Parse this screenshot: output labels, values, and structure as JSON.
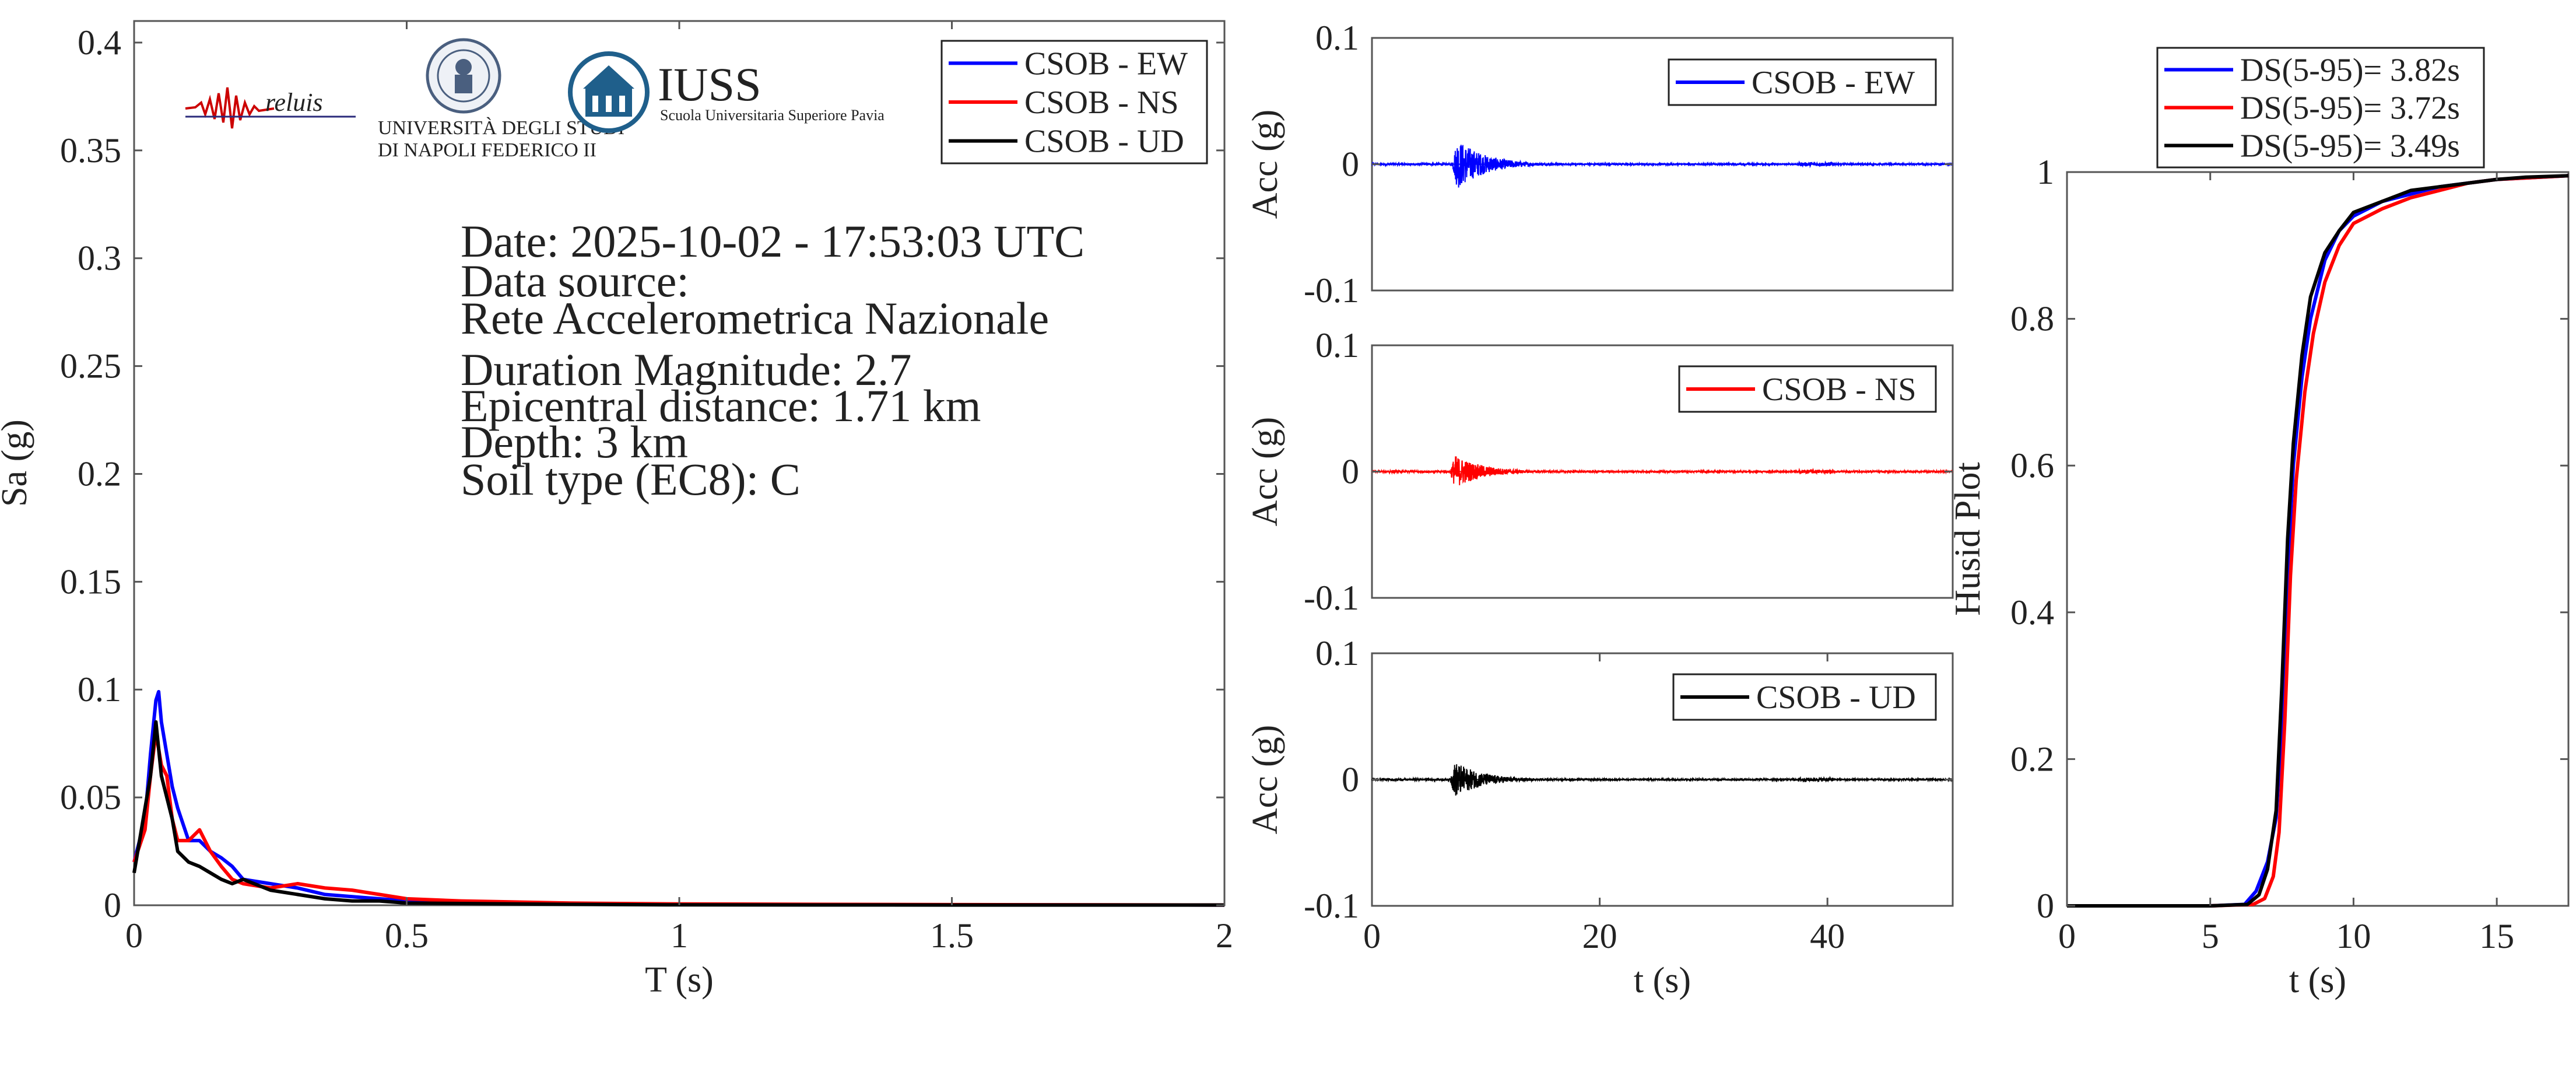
{
  "colors": {
    "ew": "#0000ff",
    "ns": "#ff0000",
    "ud": "#000000",
    "axis": "#555555"
  },
  "logos": {
    "reluis": "reluis",
    "unina_line1": "UNIVERSITÀ DEGLI STUDI",
    "unina_line2": "DI NAPOLI FEDERICO II",
    "iuss": "IUSS",
    "iuss_sub": "Scuola Universitaria Superiore Pavia"
  },
  "info": {
    "date": "Date: 2025-10-02 - 17:53:03 UTC",
    "source_label": "Data source:",
    "source": "Rete Accelerometrica Nazionale",
    "magnitude": "Duration Magnitude: 2.7",
    "distance": "Epicentral distance: 1.71 km",
    "depth": "Depth: 3 km",
    "soil": "Soil type (EC8): C"
  },
  "chart_data": [
    {
      "id": "spectrum",
      "type": "line",
      "xlabel": "T (s)",
      "ylabel": "Sa (g)",
      "xlim": [
        0,
        2
      ],
      "ylim": [
        0,
        0.41
      ],
      "xticks": [
        "0",
        "0.5",
        "1",
        "1.5",
        "2"
      ],
      "xtick_values": [
        0,
        0.5,
        1,
        1.5,
        2
      ],
      "yticks": [
        "0",
        "0.05",
        "0.1",
        "0.15",
        "0.2",
        "0.25",
        "0.3",
        "0.35",
        "0.4"
      ],
      "ytick_values": [
        0,
        0.05,
        0.1,
        0.15,
        0.2,
        0.25,
        0.3,
        0.35,
        0.4
      ],
      "grid": false,
      "legend": "top-right",
      "series": [
        {
          "name": "CSOB - EW",
          "color": "#0000ff",
          "x": [
            0,
            0.02,
            0.03,
            0.04,
            0.045,
            0.05,
            0.06,
            0.07,
            0.08,
            0.1,
            0.12,
            0.14,
            0.16,
            0.18,
            0.2,
            0.25,
            0.3,
            0.35,
            0.4,
            0.45,
            0.5,
            0.6,
            0.8,
            1.0,
            1.5,
            2.0
          ],
          "y": [
            0.02,
            0.04,
            0.07,
            0.095,
            0.099,
            0.085,
            0.07,
            0.055,
            0.045,
            0.03,
            0.03,
            0.025,
            0.022,
            0.018,
            0.012,
            0.01,
            0.008,
            0.005,
            0.004,
            0.003,
            0.002,
            0.001,
            0.0005,
            0.0003,
            0.0002,
            0.0001
          ]
        },
        {
          "name": "CSOB - NS",
          "color": "#ff0000",
          "x": [
            0,
            0.02,
            0.03,
            0.04,
            0.05,
            0.06,
            0.07,
            0.08,
            0.1,
            0.12,
            0.14,
            0.16,
            0.18,
            0.2,
            0.25,
            0.3,
            0.35,
            0.4,
            0.45,
            0.5,
            0.6,
            0.8,
            1.0,
            1.5,
            2.0
          ],
          "y": [
            0.02,
            0.035,
            0.06,
            0.08,
            0.065,
            0.06,
            0.04,
            0.03,
            0.03,
            0.035,
            0.025,
            0.018,
            0.012,
            0.01,
            0.008,
            0.01,
            0.008,
            0.007,
            0.005,
            0.003,
            0.002,
            0.001,
            0.0006,
            0.0003,
            0.0001
          ]
        },
        {
          "name": "CSOB - UD",
          "color": "#000000",
          "x": [
            0,
            0.02,
            0.03,
            0.04,
            0.05,
            0.06,
            0.07,
            0.08,
            0.1,
            0.12,
            0.14,
            0.16,
            0.18,
            0.2,
            0.25,
            0.3,
            0.35,
            0.4,
            0.45,
            0.5,
            0.6,
            0.8,
            1.0,
            1.5,
            2.0
          ],
          "y": [
            0.015,
            0.045,
            0.06,
            0.085,
            0.06,
            0.05,
            0.04,
            0.025,
            0.02,
            0.018,
            0.015,
            0.012,
            0.01,
            0.012,
            0.007,
            0.005,
            0.003,
            0.002,
            0.002,
            0.001,
            0.0008,
            0.0004,
            0.0002,
            0.0001,
            0.0001
          ]
        }
      ]
    },
    {
      "id": "acc_ew",
      "type": "line",
      "xlabel": "",
      "ylabel": "Acc (g)",
      "xlim": [
        0,
        51
      ],
      "ylim": [
        -0.1,
        0.1
      ],
      "xticks": [],
      "xtick_values": [],
      "yticks": [
        "-0.1",
        "0",
        "0.1"
      ],
      "ytick_values": [
        -0.1,
        0,
        0.1
      ],
      "legend": "top-right",
      "series": [
        {
          "name": "CSOB - EW",
          "color": "#0000ff",
          "signal_duration_s": 51,
          "peak_time_s": 7.5,
          "peak_abs": 0.02,
          "decay_s": 2.5,
          "pre_noise": 0.0008,
          "post_noise": 0.0006
        }
      ]
    },
    {
      "id": "acc_ns",
      "type": "line",
      "xlabel": "",
      "ylabel": "Acc (g)",
      "xlim": [
        0,
        51
      ],
      "ylim": [
        -0.1,
        0.1
      ],
      "xticks": [],
      "xtick_values": [],
      "yticks": [
        "-0.1",
        "0",
        "0.1"
      ],
      "ytick_values": [
        -0.1,
        0,
        0.1
      ],
      "legend": "top-right",
      "series": [
        {
          "name": "CSOB - NS",
          "color": "#ff0000",
          "signal_duration_s": 51,
          "peak_time_s": 7.3,
          "peak_abs": 0.013,
          "decay_s": 2.5,
          "pre_noise": 0.0008,
          "post_noise": 0.0006
        }
      ]
    },
    {
      "id": "acc_ud",
      "type": "line",
      "xlabel": "t (s)",
      "ylabel": "Acc (g)",
      "xlim": [
        0,
        51
      ],
      "ylim": [
        -0.1,
        0.1
      ],
      "xticks": [
        "0",
        "20",
        "40"
      ],
      "xtick_values": [
        0,
        20,
        40
      ],
      "yticks": [
        "-0.1",
        "0",
        "0.1"
      ],
      "ytick_values": [
        -0.1,
        0,
        0.1
      ],
      "legend": "top-right",
      "series": [
        {
          "name": "CSOB - UD",
          "color": "#000000",
          "signal_duration_s": 51,
          "peak_time_s": 7.3,
          "peak_abs": 0.014,
          "decay_s": 2.5,
          "pre_noise": 0.0008,
          "post_noise": 0.0006
        }
      ]
    },
    {
      "id": "husid",
      "type": "line",
      "xlabel": "t (s)",
      "ylabel": "Husid Plot",
      "xlim": [
        0,
        17.5
      ],
      "ylim": [
        0,
        1
      ],
      "xticks": [
        "0",
        "5",
        "10",
        "15"
      ],
      "xtick_values": [
        0,
        5,
        10,
        15
      ],
      "yticks": [
        "0",
        "0.2",
        "0.4",
        "0.6",
        "0.8",
        "1"
      ],
      "ytick_values": [
        0,
        0.2,
        0.4,
        0.6,
        0.8,
        1
      ],
      "legend": "top-left-outside",
      "series": [
        {
          "name": "DS(5-95)= 3.82s",
          "color": "#0000ff",
          "x": [
            0,
            5,
            6.2,
            6.6,
            7.0,
            7.3,
            7.5,
            7.7,
            7.9,
            8.2,
            8.5,
            9.0,
            9.5,
            10.0,
            11.0,
            12.0,
            13.0,
            14.0,
            15.0,
            16.0,
            17.5
          ],
          "y": [
            0,
            0,
            0.002,
            0.02,
            0.06,
            0.12,
            0.25,
            0.45,
            0.6,
            0.72,
            0.8,
            0.88,
            0.92,
            0.94,
            0.96,
            0.97,
            0.98,
            0.985,
            0.99,
            0.992,
            0.995
          ]
        },
        {
          "name": "DS(5-95)= 3.72s",
          "color": "#ff0000",
          "x": [
            0,
            5,
            6.5,
            6.9,
            7.2,
            7.4,
            7.6,
            7.8,
            8.0,
            8.3,
            8.6,
            9.0,
            9.5,
            10.0,
            11.0,
            12.0,
            13.0,
            14.0,
            15.0,
            16.0,
            17.5
          ],
          "y": [
            0,
            0,
            0.002,
            0.01,
            0.04,
            0.1,
            0.25,
            0.45,
            0.58,
            0.7,
            0.78,
            0.85,
            0.9,
            0.93,
            0.95,
            0.965,
            0.975,
            0.985,
            0.99,
            0.992,
            0.995
          ]
        },
        {
          "name": "DS(5-95)= 3.49s",
          "color": "#000000",
          "x": [
            0,
            5,
            6.3,
            6.7,
            7.0,
            7.3,
            7.5,
            7.7,
            7.9,
            8.2,
            8.5,
            9.0,
            9.5,
            10.0,
            11.0,
            12.0,
            13.0,
            14.0,
            15.0,
            16.0,
            17.5
          ],
          "y": [
            0,
            0,
            0.002,
            0.015,
            0.05,
            0.13,
            0.3,
            0.5,
            0.63,
            0.75,
            0.83,
            0.89,
            0.92,
            0.945,
            0.96,
            0.975,
            0.98,
            0.985,
            0.99,
            0.993,
            0.995
          ]
        }
      ]
    }
  ]
}
